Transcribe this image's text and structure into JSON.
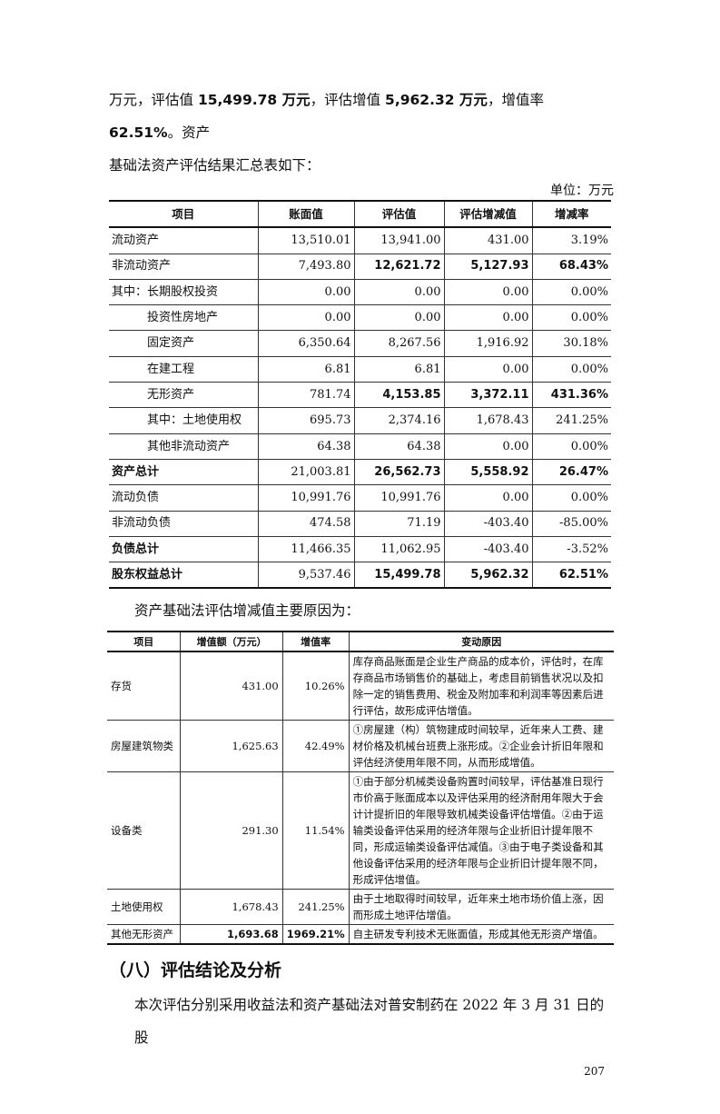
{
  "intro": {
    "line1_a": "万元，评估值 ",
    "line1_b": "15,499.78 万元",
    "line1_c": "，评估增值 ",
    "line1_d": "5,962.32 万元",
    "line1_e": "，增值率 ",
    "line1_f": "62.51%",
    "line1_g": "。资产",
    "line2": "基础法资产评估结果汇总表如下："
  },
  "unit": "单位：万元",
  "table1": {
    "headers": [
      "项目",
      "账面值",
      "评估值",
      "评估增减值",
      "增减率"
    ],
    "rows": [
      {
        "cells": [
          "流动资产",
          "13,510.01",
          "13,941.00",
          "431.00",
          "3.19%"
        ]
      },
      {
        "cells": [
          "非流动资产",
          "7,493.80",
          "12,621.72",
          "5,127.93",
          "68.43%"
        ]
      },
      {
        "cells": [
          "其中：长期股权投资",
          "0.00",
          "0.00",
          "0.00",
          "0.00%"
        ]
      },
      {
        "cells": [
          "投资性房地产",
          "0.00",
          "0.00",
          "0.00",
          "0.00%"
        ]
      },
      {
        "cells": [
          "固定资产",
          "6,350.64",
          "8,267.56",
          "1,916.92",
          "30.18%"
        ]
      },
      {
        "cells": [
          "在建工程",
          "6.81",
          "6.81",
          "0.00",
          "0.00%"
        ]
      },
      {
        "cells": [
          "无形资产",
          "781.74",
          "4,153.85",
          "3,372.11",
          "431.36%"
        ]
      },
      {
        "cells": [
          "其中：土地使用权",
          "695.73",
          "2,374.16",
          "1,678.43",
          "241.25%"
        ]
      },
      {
        "cells": [
          "其他非流动资产",
          "64.38",
          "64.38",
          "0.00",
          "0.00%"
        ]
      },
      {
        "cells": [
          "资产总计",
          "21,003.81",
          "26,562.73",
          "5,558.92",
          "26.47%"
        ]
      },
      {
        "cells": [
          "流动负债",
          "10,991.76",
          "10,991.76",
          "0.00",
          "0.00%"
        ]
      },
      {
        "cells": [
          "非流动负债",
          "474.58",
          "71.19",
          "-403.40",
          "-85.00%"
        ]
      },
      {
        "cells": [
          "负债总计",
          "11,466.35",
          "11,062.95",
          "-403.40",
          "-3.52%"
        ]
      },
      {
        "cells": [
          "股东权益总计",
          "9,537.46",
          "15,499.78",
          "5,962.32",
          "62.51%"
        ]
      }
    ]
  },
  "subtitle": "资产基础法评估增减值主要原因为：",
  "table2": {
    "headers": [
      "项目",
      "增值额（万元）",
      "增值率",
      "变动原因"
    ],
    "rows": [
      {
        "cells": [
          "存货",
          "431.00",
          "10.26%",
          "库存商品账面是企业生产商品的成本价，评估时，在库存商品市场销售价的基础上，考虑目前销售状况以及扣除一定的销售费用、税金及附加率和利润率等因素后进行评估，故形成评估增值。"
        ]
      },
      {
        "cells": [
          "房屋建筑物类",
          "1,625.63",
          "42.49%",
          "①房屋建（构）筑物建成时间较早，近年来人工费、建材价格及机械台班费上涨形成。②企业会计折旧年限和评估经济使用年限不同，从而形成增值。"
        ]
      },
      {
        "cells": [
          "设备类",
          "291.30",
          "11.54%",
          "①由于部分机械类设备购置时间较早，评估基准日现行市价高于账面成本以及评估采用的经济耐用年限大于会计计提折旧的年限导致机械类设备评估增值。②由于运输类设备评估采用的经济年限与企业折旧计提年限不同，形成运输类设备评估减值。③由于电子类设备和其他设备评估采用的经济年限与企业折旧计提年限不同，形成评估增值。"
        ]
      },
      {
        "cells": [
          "土地使用权",
          "1,678.43",
          "241.25%",
          "由于土地取得时间较早，近年来土地市场价值上涨，因而形成土地评估增值。"
        ]
      },
      {
        "cells": [
          "其他无形资产",
          "1,693.68",
          "1969.21%",
          "自主研发专利技术无账面值，形成其他无形资产增值。"
        ]
      }
    ]
  },
  "section_heading": "（八）评估结论及分析",
  "conclusion": "本次评估分别采用收益法和资产基础法对普安制药在 2022 年 3 月 31 日的股",
  "page_number": "207"
}
